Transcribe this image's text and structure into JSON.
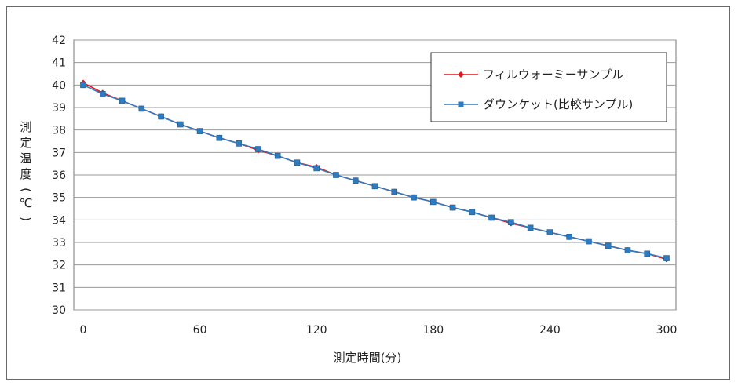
{
  "chart_data": {
    "type": "line",
    "title": "",
    "xlabel": "測定時間(分)",
    "ylabel": "測定温度(℃)",
    "xlim": [
      0,
      300
    ],
    "ylim": [
      30,
      42
    ],
    "x_ticks": [
      0,
      60,
      120,
      180,
      240,
      300
    ],
    "y_ticks": [
      30,
      31,
      32,
      33,
      34,
      35,
      36,
      37,
      38,
      39,
      40,
      41,
      42
    ],
    "grid": "horizontal",
    "legend_position": "top-right",
    "x": [
      0,
      10,
      20,
      30,
      40,
      50,
      60,
      70,
      80,
      90,
      100,
      110,
      120,
      130,
      140,
      150,
      160,
      170,
      180,
      190,
      200,
      210,
      220,
      230,
      240,
      250,
      260,
      270,
      280,
      290,
      300
    ],
    "series": [
      {
        "name": "フィルウォーミーサンプル",
        "color": "#e8141a",
        "marker": "diamond",
        "values": [
          40.1,
          39.65,
          39.3,
          38.95,
          38.6,
          38.25,
          37.95,
          37.65,
          37.4,
          37.1,
          36.85,
          36.55,
          36.35,
          36.0,
          35.75,
          35.5,
          35.25,
          35.0,
          34.8,
          34.55,
          34.35,
          34.1,
          33.85,
          33.65,
          33.45,
          33.25,
          33.05,
          32.85,
          32.65,
          32.5,
          32.25
        ]
      },
      {
        "name": "ダウンケット(比較サンプル)",
        "color": "#2e7bbf",
        "marker": "square",
        "values": [
          40.0,
          39.6,
          39.3,
          38.95,
          38.6,
          38.25,
          37.95,
          37.65,
          37.4,
          37.15,
          36.85,
          36.55,
          36.3,
          36.0,
          35.75,
          35.5,
          35.25,
          35.0,
          34.8,
          34.55,
          34.35,
          34.1,
          33.9,
          33.65,
          33.45,
          33.25,
          33.05,
          32.85,
          32.65,
          32.5,
          32.3
        ]
      }
    ]
  }
}
